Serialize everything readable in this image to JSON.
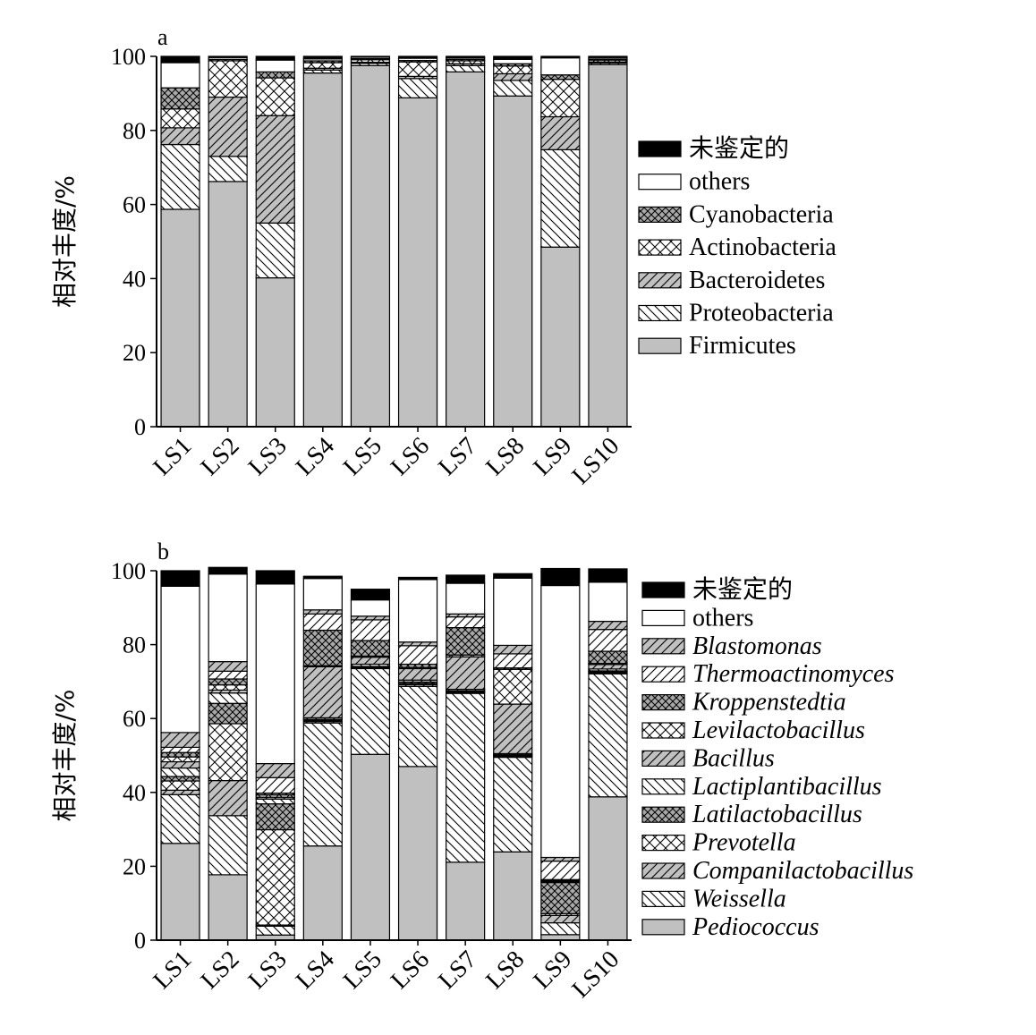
{
  "chart_data": [
    {
      "panel": "a",
      "type": "bar",
      "stacked": true,
      "ylabel": "相对丰度/%",
      "ylim": [
        0,
        100
      ],
      "yticks": [
        0,
        20,
        40,
        60,
        80,
        100
      ],
      "categories": [
        "LS1",
        "LS2",
        "LS3",
        "LS4",
        "LS5",
        "LS6",
        "LS7",
        "LS8",
        "LS9",
        "LS10"
      ],
      "series": [
        {
          "name": "Firmicutes",
          "pattern": "solid-gray",
          "values": [
            58.7,
            66.2,
            40.2,
            95.5,
            97.5,
            88.8,
            95.8,
            89.3,
            48.5,
            97.8
          ]
        },
        {
          "name": "Proteobacteria",
          "pattern": "hatch-back",
          "values": [
            17.5,
            6.8,
            14.8,
            0.8,
            0.6,
            5.2,
            1.7,
            4.2,
            26.3,
            0.4
          ]
        },
        {
          "name": "Bacteroidetes",
          "pattern": "hatch-fwd-gray",
          "values": [
            4.5,
            16.0,
            29.0,
            0.5,
            0.3,
            0.6,
            0.5,
            1.8,
            8.9,
            0.3
          ]
        },
        {
          "name": "Actinobacteria",
          "pattern": "cross-white",
          "values": [
            5.1,
            9.8,
            10.2,
            1.5,
            0.7,
            3.9,
            0.8,
            2.1,
            10.1,
            0.5
          ]
        },
        {
          "name": "Cyanobacteria",
          "pattern": "cross-gray",
          "values": [
            5.7,
            0.4,
            1.6,
            0.5,
            0.3,
            0.4,
            0.4,
            0.6,
            1.2,
            0.3
          ]
        },
        {
          "name": "others",
          "pattern": "white",
          "values": [
            6.8,
            0.5,
            3.2,
            0.5,
            0.4,
            0.6,
            0.4,
            1.2,
            4.6,
            0.4
          ]
        },
        {
          "name": "未鉴定的",
          "pattern": "black",
          "values": [
            1.7,
            0.3,
            1.0,
            0.7,
            0.2,
            0.5,
            0.4,
            0.8,
            0.4,
            0.3
          ]
        }
      ]
    },
    {
      "panel": "b",
      "type": "bar",
      "stacked": true,
      "ylabel": "相对丰度/%",
      "ylim": [
        0,
        100
      ],
      "yticks": [
        0,
        20,
        40,
        60,
        80,
        100
      ],
      "categories": [
        "LS1",
        "LS2",
        "LS3",
        "LS4",
        "LS5",
        "LS6",
        "LS7",
        "LS8",
        "LS9",
        "LS10"
      ],
      "series": [
        {
          "name": "Pediococcus",
          "pattern": "solid-gray",
          "values": [
            26.2,
            17.7,
            1.4,
            25.5,
            50.3,
            47.0,
            21.1,
            23.9,
            1.5,
            38.8
          ]
        },
        {
          "name": "Weissella",
          "pattern": "hatch-back",
          "values": [
            13.2,
            16.0,
            2.4,
            33.3,
            23.2,
            21.7,
            45.7,
            25.6,
            3.2,
            33.3
          ]
        },
        {
          "name": "Companilactobacillus",
          "pattern": "hatch-fwd-gray",
          "values": [
            1.2,
            9.5,
            0.3,
            0.4,
            0.2,
            0.5,
            0.3,
            0.3,
            2.0,
            0.3
          ]
        },
        {
          "name": "Prevotella",
          "pattern": "cross-white",
          "values": [
            2.5,
            15.4,
            25.8,
            0.3,
            0.2,
            0.3,
            0.2,
            0.2,
            0.5,
            0.3
          ]
        },
        {
          "name": "Latilactobacillus",
          "pattern": "cross-gray",
          "values": [
            1.2,
            5.5,
            7.0,
            0.3,
            0.2,
            0.4,
            0.2,
            0.2,
            8.4,
            0.2
          ]
        },
        {
          "name": "Lactiplantibacillus",
          "pattern": "hatch-back",
          "values": [
            2.3,
            2.8,
            1.3,
            0.4,
            0.6,
            0.5,
            0.4,
            0.3,
            0.2,
            0.5
          ]
        },
        {
          "name": "Bacillus",
          "pattern": "hatch-fwd-gray",
          "values": [
            1.7,
            0.8,
            0.5,
            13.8,
            1.9,
            3.1,
            8.8,
            13.4,
            0.2,
            1.2
          ]
        },
        {
          "name": "Levilactobacillus",
          "pattern": "cross-white",
          "values": [
            1.3,
            1.4,
            0.6,
            0.3,
            0.3,
            0.3,
            0.5,
            9.4,
            0.2,
            0.3
          ]
        },
        {
          "name": "Kroppenstedtia",
          "pattern": "cross-gray",
          "values": [
            1.2,
            1.6,
            0.5,
            9.6,
            4.2,
            0.9,
            7.4,
            0.4,
            0.2,
            3.3
          ]
        },
        {
          "name": "Thermoactinomyces",
          "pattern": "hatch-fwd",
          "values": [
            1.4,
            2.1,
            4.2,
            4.4,
            5.6,
            5.0,
            2.9,
            3.8,
            5.0,
            5.9
          ]
        },
        {
          "name": "Blastomonas",
          "pattern": "hatch-fwd-gray",
          "values": [
            4.0,
            2.6,
            3.8,
            1.1,
            1.0,
            1.0,
            0.8,
            2.3,
            1.0,
            2.2
          ]
        },
        {
          "name": "others",
          "pattern": "white",
          "values": [
            39.6,
            23.7,
            48.6,
            8.5,
            4.4,
            16.9,
            8.3,
            18.2,
            73.6,
            10.6
          ]
        },
        {
          "name": "未鉴定的",
          "pattern": "black",
          "values": [
            4.2,
            1.8,
            3.6,
            0.6,
            2.9,
            0.6,
            2.2,
            1.2,
            4.6,
            3.6
          ]
        }
      ]
    }
  ]
}
